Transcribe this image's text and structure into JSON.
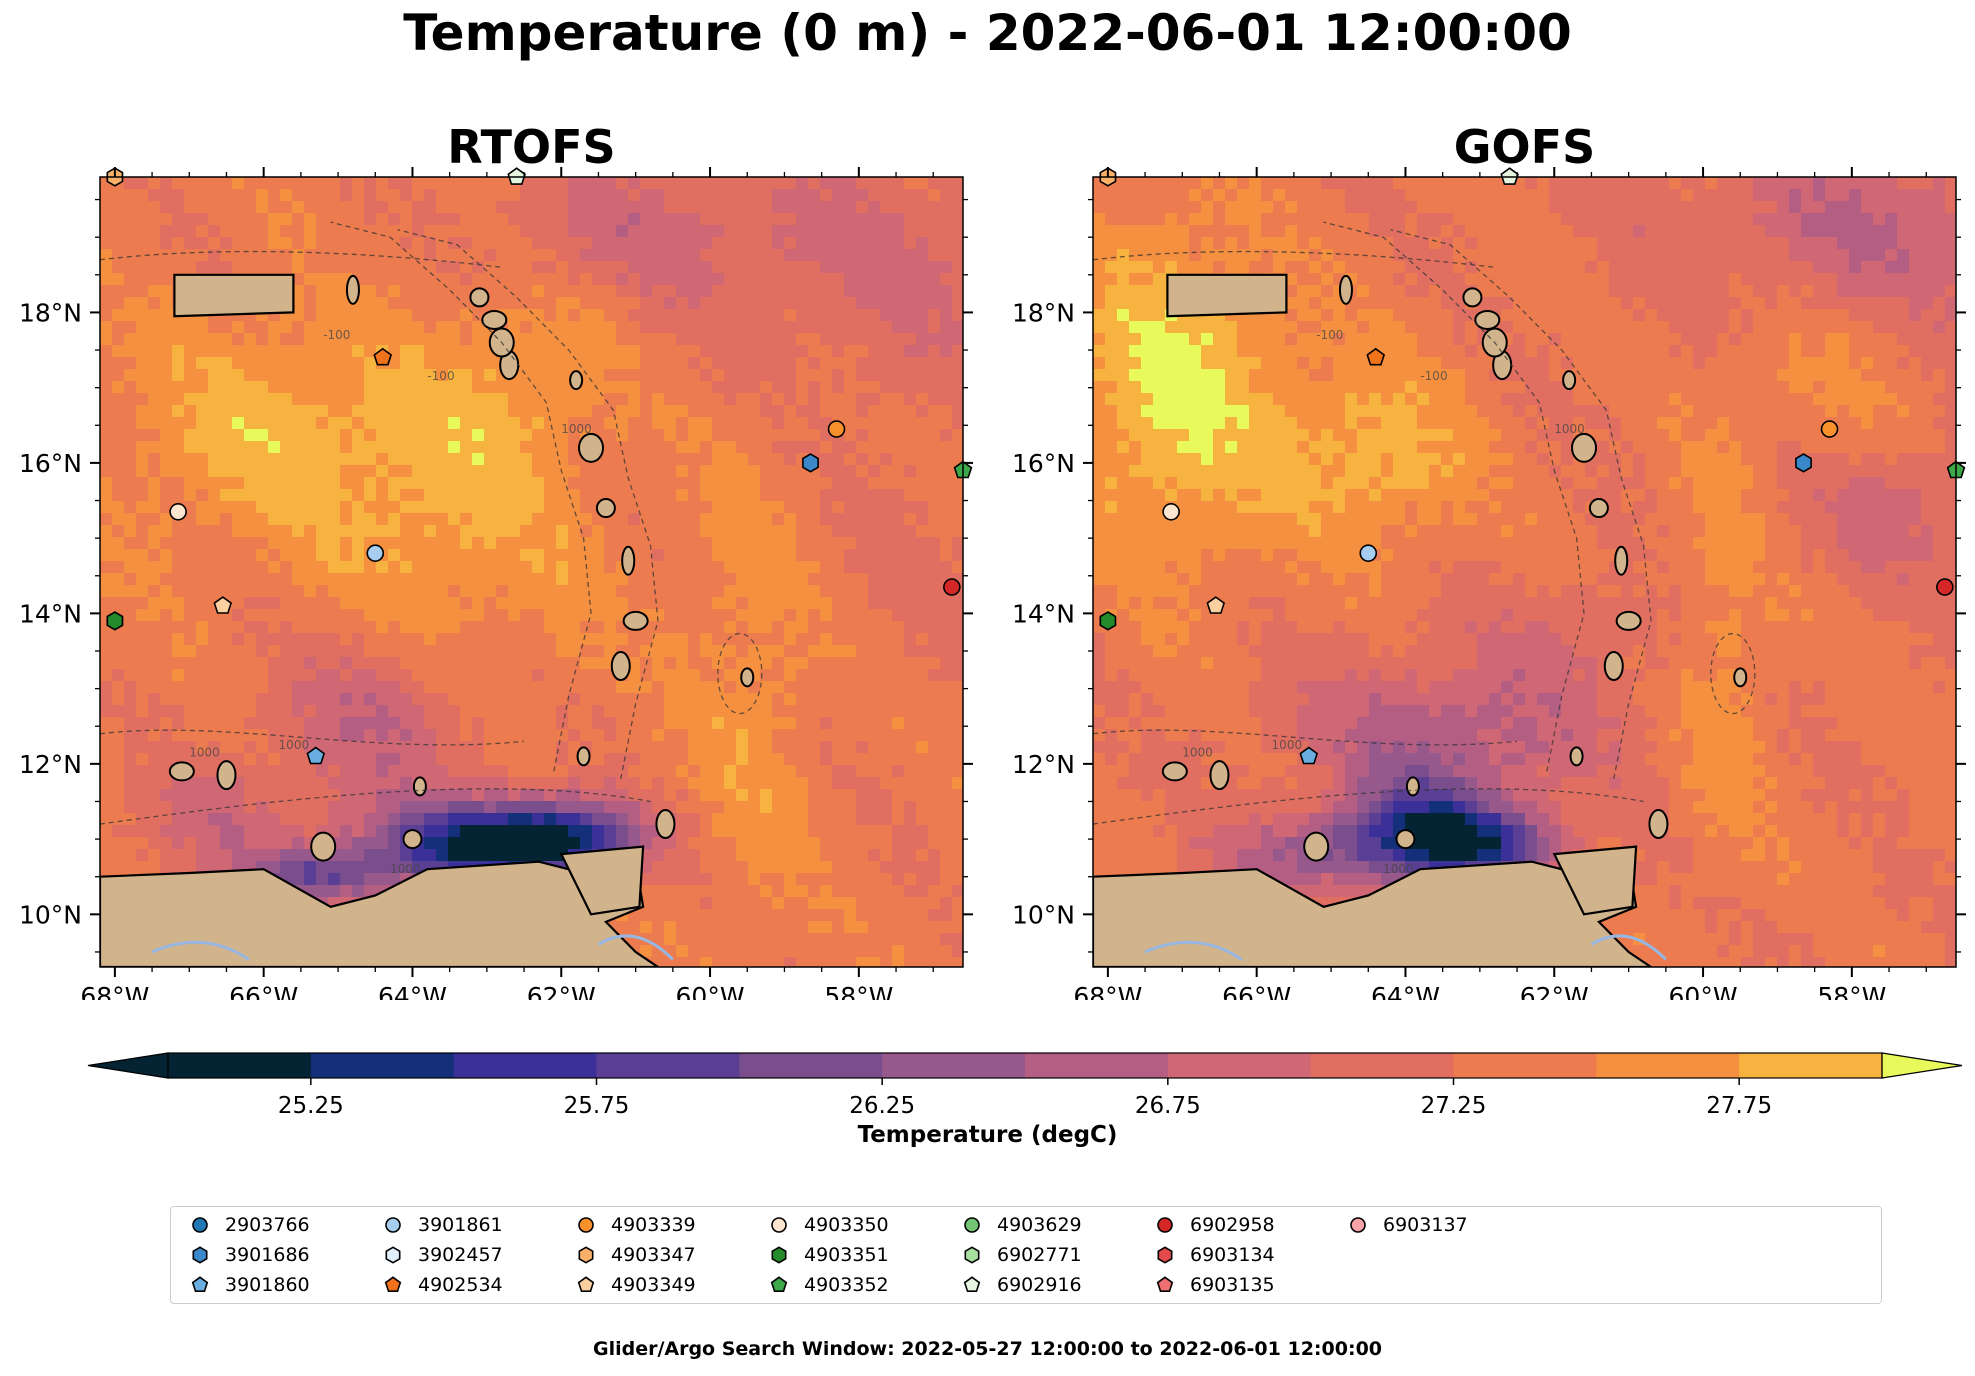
{
  "figure_title": "Temperature (0 m) - 2022-06-01 12:00:00",
  "footer_text": "Glider/Argo Search Window: 2022-05-27 12:00:00 to 2022-06-01 12:00:00",
  "chart_data": [
    {
      "type": "heatmap",
      "title": "RTOFS",
      "x_ticks": [
        "68°W",
        "66°W",
        "64°W",
        "62°W",
        "60°W",
        "58°W"
      ],
      "x_tick_values": [
        -68,
        -66,
        -64,
        -62,
        -60,
        -58
      ],
      "y_ticks": [
        "10°N",
        "12°N",
        "14°N",
        "16°N",
        "18°N"
      ],
      "y_tick_values": [
        10,
        12,
        14,
        16,
        18
      ],
      "xlim": [
        -68.2,
        -56.6
      ],
      "ylim": [
        9.3,
        19.8
      ],
      "features": [
        "land",
        "coastlines",
        "200 m / 1000 m bathymetry contours"
      ]
    },
    {
      "type": "heatmap",
      "title": "GOFS",
      "x_ticks": [
        "68°W",
        "66°W",
        "64°W",
        "62°W",
        "60°W",
        "58°W"
      ],
      "x_tick_values": [
        -68,
        -66,
        -64,
        -62,
        -60,
        -58
      ],
      "y_ticks": [
        "10°N",
        "12°N",
        "14°N",
        "16°N",
        "18°N"
      ],
      "y_tick_values": [
        10,
        12,
        14,
        16,
        18
      ],
      "xlim": [
        -68.2,
        -56.6
      ],
      "ylim": [
        9.3,
        19.8
      ],
      "features": [
        "land",
        "coastlines",
        "200 m / 1000 m bathymetry contours"
      ]
    }
  ],
  "colorbar": {
    "label": "Temperature (degC)",
    "min": 25.0,
    "max": 28.0,
    "step": 0.25,
    "extend": "both",
    "tick_values": [
      25.25,
      25.75,
      26.25,
      26.75,
      27.25,
      27.75
    ],
    "tick_labels": [
      "25.25",
      "25.75",
      "26.25",
      "26.75",
      "27.25",
      "27.75"
    ],
    "colors": [
      "#042333",
      "#15307a",
      "#3b2f98",
      "#5b3f94",
      "#7a4e8d",
      "#97588c",
      "#b45e83",
      "#cf6774",
      "#e06f62",
      "#ec7b4f",
      "#f59040",
      "#f6b340",
      "#e8fa5b"
    ]
  },
  "labels": {
    "contour_1000": "1000",
    "contour_100": "-100"
  },
  "colors": {
    "land": "#d2b48c",
    "water_river": "#97b6e1"
  },
  "legend": {
    "items": [
      {
        "label": "2903766",
        "marker": "circle",
        "color": "#1f77b4"
      },
      {
        "label": "3901686",
        "marker": "hexagon",
        "color": "#3a87c9"
      },
      {
        "label": "3901860",
        "marker": "pentagon",
        "color": "#6aaee0"
      },
      {
        "label": "3901861",
        "marker": "circle",
        "color": "#a6cdf0"
      },
      {
        "label": "3902457",
        "marker": "hexagon",
        "color": "#deeefb"
      },
      {
        "label": "4902534",
        "marker": "pentagon",
        "color": "#f0731b"
      },
      {
        "label": "4903339",
        "marker": "circle",
        "color": "#f8902c"
      },
      {
        "label": "4903347",
        "marker": "hexagon",
        "color": "#fbb06a"
      },
      {
        "label": "4903349",
        "marker": "pentagon",
        "color": "#fdd0a2"
      },
      {
        "label": "4903350",
        "marker": "circle",
        "color": "#fde5cf"
      },
      {
        "label": "4903351",
        "marker": "hexagon",
        "color": "#248a2c"
      },
      {
        "label": "4903352",
        "marker": "pentagon",
        "color": "#3ca849"
      },
      {
        "label": "4903629",
        "marker": "circle",
        "color": "#74c476"
      },
      {
        "label": "6902771",
        "marker": "hexagon",
        "color": "#a8e0a0"
      },
      {
        "label": "6902916",
        "marker": "pentagon",
        "color": "#e5f5e0"
      },
      {
        "label": "6902958",
        "marker": "circle",
        "color": "#d62728"
      },
      {
        "label": "6903134",
        "marker": "hexagon",
        "color": "#e34a4a"
      },
      {
        "label": "6903135",
        "marker": "pentagon",
        "color": "#ef6f73"
      },
      {
        "label": "6903137",
        "marker": "circle",
        "color": "#f8a3a8"
      }
    ]
  },
  "floats": [
    {
      "id": "4903347",
      "lon": -68.0,
      "lat": 19.8
    },
    {
      "id": "6902916",
      "lon": -62.6,
      "lat": 19.8
    },
    {
      "id": "4902534",
      "lon": -64.4,
      "lat": 17.4
    },
    {
      "id": "4903339",
      "lon": -58.3,
      "lat": 16.45
    },
    {
      "id": "3901686",
      "lon": -58.65,
      "lat": 16.0
    },
    {
      "id": "4903352",
      "lon": -56.6,
      "lat": 15.9
    },
    {
      "id": "4903350",
      "lon": -67.15,
      "lat": 15.35
    },
    {
      "id": "3901861",
      "lon": -64.5,
      "lat": 14.8
    },
    {
      "id": "6902958",
      "lon": -56.75,
      "lat": 14.35
    },
    {
      "id": "4903349",
      "lon": -66.55,
      "lat": 14.1
    },
    {
      "id": "4903351",
      "lon": -68.0,
      "lat": 13.9
    },
    {
      "id": "3901860",
      "lon": -65.3,
      "lat": 12.1
    }
  ]
}
